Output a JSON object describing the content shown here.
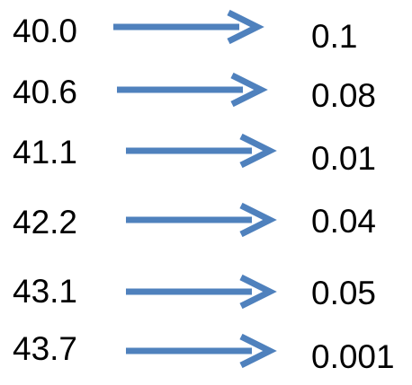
{
  "colors": {
    "arrow": "#4f81bd",
    "text": "#000000",
    "background": "#ffffff"
  },
  "mappings": [
    {
      "from": "40.0",
      "to": "0.1"
    },
    {
      "from": "40.6",
      "to": "0.08"
    },
    {
      "from": "41.1",
      "to": "0.01"
    },
    {
      "from": "42.2",
      "to": "0.04"
    },
    {
      "from": "43.1",
      "to": "0.05"
    },
    {
      "from": "43.7",
      "to": "0.001"
    }
  ]
}
